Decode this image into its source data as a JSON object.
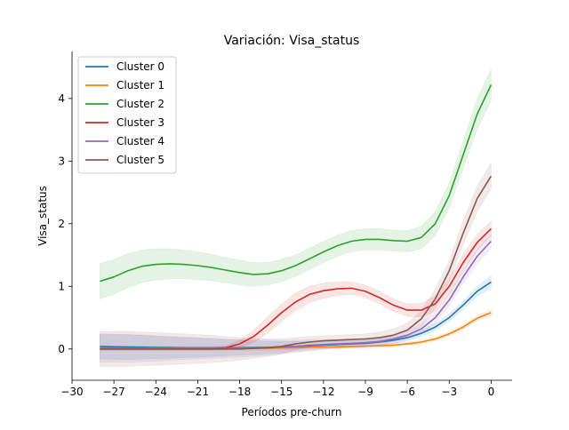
{
  "chart_data": {
    "type": "line",
    "title": "Variación: Visa_status",
    "xlabel": "Períodos pre-churn",
    "ylabel": "Visa_status",
    "xlim": [
      -30,
      1.5
    ],
    "ylim": [
      -0.5,
      4.75
    ],
    "xticks": [
      -30,
      -27,
      -24,
      -21,
      -18,
      -15,
      -12,
      -9,
      -6,
      -3,
      0
    ],
    "yticks": [
      0,
      1,
      2,
      3,
      4
    ],
    "xtick_labels": [
      "−30",
      "−27",
      "−24",
      "−21",
      "−18",
      "−15",
      "−12",
      "−9",
      "−6",
      "−3",
      "0"
    ],
    "ytick_labels": [
      "0",
      "1",
      "2",
      "3",
      "4"
    ],
    "grid": false,
    "legend_position": "top-left",
    "x": [
      -28,
      -27,
      -26,
      -25,
      -24,
      -23,
      -22,
      -21,
      -20,
      -19,
      -18,
      -17,
      -16,
      -15,
      -14,
      -13,
      -12,
      -11,
      -10,
      -9,
      -8,
      -7,
      -6,
      -5,
      -4,
      -3,
      -2,
      -1,
      0
    ],
    "series": [
      {
        "name": "Cluster 0",
        "color": "#1f77b4",
        "values": [
          0.04,
          0.035,
          0.03,
          0.028,
          0.025,
          0.022,
          0.02,
          0.02,
          0.02,
          0.02,
          0.02,
          0.022,
          0.025,
          0.03,
          0.04,
          0.05,
          0.06,
          0.07,
          0.08,
          0.09,
          0.11,
          0.14,
          0.18,
          0.25,
          0.35,
          0.5,
          0.7,
          0.92,
          1.07
        ],
        "band": [
          0.2,
          0.2,
          0.2,
          0.19,
          0.18,
          0.17,
          0.16,
          0.15,
          0.14,
          0.13,
          0.12,
          0.11,
          0.1,
          0.09,
          0.08,
          0.07,
          0.06,
          0.05,
          0.05,
          0.05,
          0.05,
          0.05,
          0.05,
          0.05,
          0.06,
          0.06,
          0.07,
          0.08,
          0.1
        ]
      },
      {
        "name": "Cluster 1",
        "color": "#ff7f0e",
        "values": [
          0.01,
          0.01,
          0.01,
          0.01,
          0.01,
          0.01,
          0.01,
          0.01,
          0.01,
          0.01,
          0.01,
          0.01,
          0.01,
          0.015,
          0.02,
          0.025,
          0.03,
          0.035,
          0.04,
          0.045,
          0.05,
          0.06,
          0.08,
          0.11,
          0.16,
          0.24,
          0.35,
          0.49,
          0.58
        ],
        "band": [
          0.03,
          0.03,
          0.03,
          0.03,
          0.03,
          0.03,
          0.03,
          0.03,
          0.03,
          0.03,
          0.03,
          0.03,
          0.03,
          0.03,
          0.03,
          0.03,
          0.03,
          0.03,
          0.03,
          0.03,
          0.03,
          0.03,
          0.03,
          0.03,
          0.03,
          0.03,
          0.04,
          0.04,
          0.05
        ]
      },
      {
        "name": "Cluster 2",
        "color": "#2ca02c",
        "values": [
          1.08,
          1.15,
          1.25,
          1.32,
          1.35,
          1.36,
          1.35,
          1.33,
          1.3,
          1.26,
          1.22,
          1.19,
          1.2,
          1.25,
          1.33,
          1.44,
          1.55,
          1.65,
          1.72,
          1.75,
          1.75,
          1.73,
          1.72,
          1.78,
          2.0,
          2.45,
          3.1,
          3.75,
          4.22
        ],
        "band": [
          0.28,
          0.28,
          0.27,
          0.26,
          0.25,
          0.24,
          0.23,
          0.22,
          0.21,
          0.2,
          0.2,
          0.19,
          0.18,
          0.18,
          0.17,
          0.17,
          0.17,
          0.17,
          0.17,
          0.17,
          0.17,
          0.17,
          0.17,
          0.18,
          0.19,
          0.2,
          0.22,
          0.24,
          0.25
        ]
      },
      {
        "name": "Cluster 3",
        "color": "#d62728",
        "values": [
          0.0,
          0.0,
          0.0,
          0.0,
          0.0,
          0.0,
          0.0,
          0.0,
          0.0,
          0.02,
          0.08,
          0.2,
          0.38,
          0.58,
          0.75,
          0.87,
          0.93,
          0.96,
          0.97,
          0.92,
          0.82,
          0.7,
          0.62,
          0.62,
          0.72,
          1.0,
          1.38,
          1.7,
          1.92
        ],
        "band": [
          0.02,
          0.02,
          0.02,
          0.02,
          0.02,
          0.02,
          0.02,
          0.02,
          0.02,
          0.03,
          0.06,
          0.1,
          0.13,
          0.14,
          0.14,
          0.13,
          0.12,
          0.11,
          0.1,
          0.1,
          0.1,
          0.1,
          0.1,
          0.11,
          0.12,
          0.13,
          0.13,
          0.13,
          0.12
        ]
      },
      {
        "name": "Cluster 4",
        "color": "#9467bd",
        "values": [
          0.01,
          0.01,
          0.01,
          0.01,
          0.01,
          0.01,
          0.01,
          0.01,
          0.01,
          0.01,
          0.01,
          0.015,
          0.02,
          0.03,
          0.04,
          0.06,
          0.07,
          0.08,
          0.09,
          0.1,
          0.12,
          0.16,
          0.22,
          0.32,
          0.5,
          0.78,
          1.15,
          1.48,
          1.72
        ],
        "band": [
          0.22,
          0.22,
          0.22,
          0.21,
          0.2,
          0.19,
          0.18,
          0.17,
          0.16,
          0.15,
          0.14,
          0.13,
          0.12,
          0.11,
          0.1,
          0.09,
          0.08,
          0.07,
          0.07,
          0.07,
          0.07,
          0.07,
          0.07,
          0.08,
          0.09,
          0.1,
          0.11,
          0.12,
          0.12
        ]
      },
      {
        "name": "Cluster 5",
        "color": "#8c564b",
        "values": [
          0.0,
          0.0,
          0.0,
          0.0,
          0.0,
          0.0,
          0.0,
          0.0,
          0.0,
          0.0,
          0.0,
          0.01,
          0.02,
          0.04,
          0.08,
          0.11,
          0.13,
          0.14,
          0.15,
          0.16,
          0.18,
          0.22,
          0.3,
          0.48,
          0.8,
          1.25,
          1.85,
          2.4,
          2.76
        ],
        "band": [
          0.28,
          0.28,
          0.28,
          0.27,
          0.26,
          0.25,
          0.24,
          0.23,
          0.22,
          0.2,
          0.18,
          0.16,
          0.14,
          0.12,
          0.1,
          0.09,
          0.08,
          0.08,
          0.08,
          0.08,
          0.09,
          0.1,
          0.11,
          0.13,
          0.15,
          0.17,
          0.19,
          0.2,
          0.21
        ]
      }
    ]
  }
}
